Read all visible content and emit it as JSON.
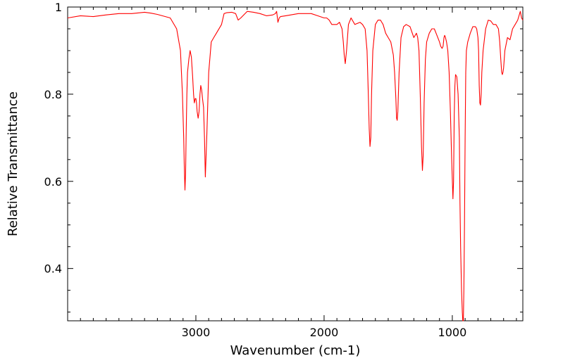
{
  "chart_data": {
    "type": "line",
    "title": "",
    "xlabel": "Wavenumber (cm-1)",
    "ylabel": "Relative Transmittance",
    "xlim": [
      4000,
      450
    ],
    "x_reversed": true,
    "ylim": [
      0.28,
      1.0
    ],
    "x_ticks": [
      3000,
      2000,
      1000
    ],
    "x_tick_labels": [
      "3000",
      "2000",
      "1000"
    ],
    "y_ticks": [
      0.4,
      0.6,
      0.8,
      1.0
    ],
    "y_tick_labels": [
      "0.4",
      "0.6",
      "0.8",
      "1"
    ],
    "grid": false,
    "legend": "none",
    "line_color": "#ff0000",
    "series": [
      {
        "x": [
          4000,
          3900,
          3800,
          3700,
          3600,
          3500,
          3400,
          3350,
          3300,
          3200,
          3150,
          3120,
          3105,
          3095,
          3090,
          3085,
          3080,
          3075,
          3070,
          3065,
          3055,
          3045,
          3035,
          3025,
          3018,
          3012,
          3005,
          3000,
          2995,
          2990,
          2982,
          2975,
          2968,
          2962,
          2955,
          2948,
          2940,
          2933,
          2926,
          2915,
          2900,
          2880,
          2860,
          2840,
          2800,
          2780,
          2760,
          2720,
          2690,
          2670,
          2650,
          2600,
          2550,
          2500,
          2450,
          2400,
          2380,
          2370,
          2360,
          2350,
          2340,
          2300,
          2200,
          2100,
          2050,
          2000,
          1980,
          1960,
          1940,
          1920,
          1900,
          1880,
          1860,
          1850,
          1843,
          1835,
          1825,
          1810,
          1790,
          1760,
          1720,
          1700,
          1680,
          1665,
          1655,
          1648,
          1642,
          1636,
          1630,
          1620,
          1600,
          1580,
          1560,
          1540,
          1520,
          1500,
          1480,
          1460,
          1450,
          1440,
          1435,
          1430,
          1425,
          1415,
          1400,
          1380,
          1360,
          1330,
          1300,
          1280,
          1270,
          1260,
          1250,
          1240,
          1233,
          1227,
          1220,
          1210,
          1200,
          1180,
          1160,
          1140,
          1120,
          1100,
          1090,
          1080,
          1072,
          1065,
          1060,
          1055,
          1045,
          1035,
          1025,
          1015,
          1005,
          995,
          990,
          985,
          980,
          975,
          965,
          955,
          945,
          940,
          935,
          928,
          922,
          918,
          914,
          910,
          905,
          900,
          895,
          890,
          880,
          860,
          840,
          820,
          810,
          800,
          795,
          790,
          785,
          780,
          775,
          770,
          760,
          740,
          720,
          700,
          680,
          660,
          640,
          630,
          622,
          615,
          610,
          605,
          600,
          590,
          570,
          550,
          530,
          510,
          490,
          470,
          460,
          450
        ],
        "y": [
          0.975,
          0.98,
          0.978,
          0.982,
          0.985,
          0.985,
          0.988,
          0.986,
          0.983,
          0.975,
          0.95,
          0.9,
          0.8,
          0.7,
          0.63,
          0.58,
          0.62,
          0.72,
          0.8,
          0.85,
          0.88,
          0.9,
          0.885,
          0.84,
          0.8,
          0.78,
          0.79,
          0.79,
          0.78,
          0.76,
          0.745,
          0.76,
          0.8,
          0.82,
          0.81,
          0.79,
          0.77,
          0.7,
          0.61,
          0.7,
          0.85,
          0.92,
          0.93,
          0.94,
          0.96,
          0.985,
          0.987,
          0.988,
          0.985,
          0.97,
          0.975,
          0.99,
          0.988,
          0.985,
          0.98,
          0.982,
          0.985,
          0.99,
          0.965,
          0.975,
          0.978,
          0.98,
          0.985,
          0.985,
          0.98,
          0.975,
          0.975,
          0.97,
          0.96,
          0.96,
          0.96,
          0.965,
          0.95,
          0.92,
          0.89,
          0.87,
          0.9,
          0.96,
          0.975,
          0.96,
          0.965,
          0.96,
          0.95,
          0.9,
          0.8,
          0.72,
          0.68,
          0.7,
          0.8,
          0.9,
          0.96,
          0.97,
          0.97,
          0.96,
          0.94,
          0.93,
          0.92,
          0.89,
          0.85,
          0.79,
          0.745,
          0.74,
          0.76,
          0.85,
          0.93,
          0.955,
          0.96,
          0.955,
          0.93,
          0.94,
          0.93,
          0.9,
          0.8,
          0.68,
          0.625,
          0.66,
          0.78,
          0.88,
          0.92,
          0.94,
          0.95,
          0.95,
          0.935,
          0.92,
          0.91,
          0.905,
          0.91,
          0.93,
          0.935,
          0.932,
          0.92,
          0.9,
          0.85,
          0.76,
          0.65,
          0.56,
          0.6,
          0.75,
          0.82,
          0.845,
          0.84,
          0.8,
          0.7,
          0.55,
          0.45,
          0.35,
          0.3,
          0.28,
          0.28,
          0.35,
          0.5,
          0.7,
          0.85,
          0.9,
          0.92,
          0.94,
          0.955,
          0.955,
          0.95,
          0.93,
          0.9,
          0.82,
          0.78,
          0.775,
          0.8,
          0.85,
          0.9,
          0.95,
          0.97,
          0.968,
          0.96,
          0.96,
          0.95,
          0.92,
          0.88,
          0.85,
          0.845,
          0.85,
          0.86,
          0.9,
          0.93,
          0.925,
          0.95,
          0.96,
          0.97,
          0.99,
          0.975,
          0.97
        ]
      }
    ]
  }
}
